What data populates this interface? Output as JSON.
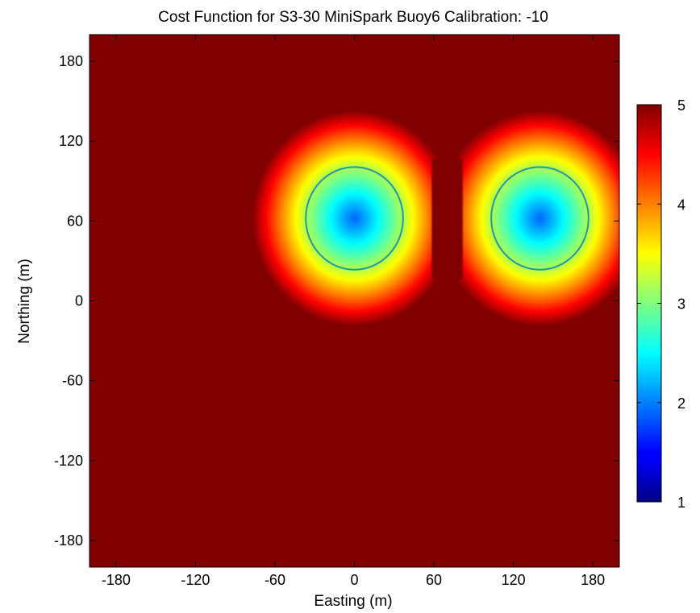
{
  "chart_data": {
    "type": "heatmap",
    "title": "Cost Function for S3-30 MiniSpark Buoy6 Calibration: -10",
    "xlabel": "Easting (m)",
    "ylabel": "Northing (m)",
    "xlim": [
      -200,
      200
    ],
    "ylim": [
      -200,
      200
    ],
    "xticks": [
      -180,
      -120,
      -60,
      0,
      60,
      120,
      180
    ],
    "yticks": [
      -180,
      -120,
      -60,
      0,
      60,
      120,
      180
    ],
    "colorbar": {
      "colormap": "jet",
      "clim": [
        1,
        5
      ],
      "ticks": [
        1,
        2,
        3,
        4,
        5
      ]
    },
    "saturated_color": "#800000",
    "grid": false,
    "features": [
      {
        "kind": "minimum",
        "center_x": 0,
        "center_y": 62,
        "min_value": 1.9,
        "contour_level": 3.2
      },
      {
        "kind": "minimum",
        "center_x": 140,
        "center_y": 62,
        "min_value": 1.9,
        "contour_level": 3.2
      }
    ]
  }
}
